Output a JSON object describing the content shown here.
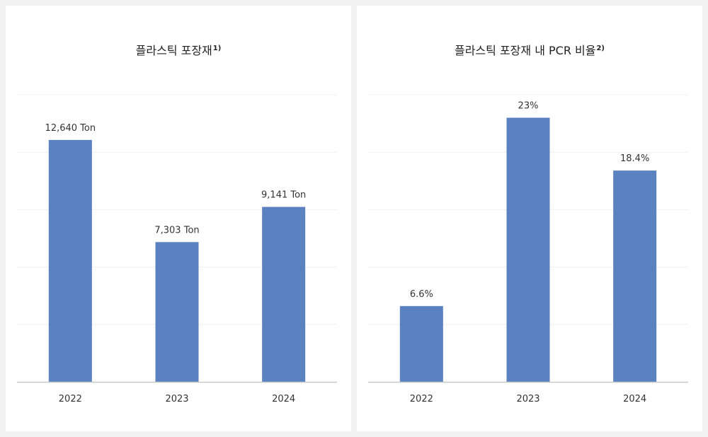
{
  "charts": [
    {
      "title": "플라스틱 포장재",
      "title_note": "1)",
      "value_suffix": " Ton"
    },
    {
      "title": "플라스틱 포장재 내 PCR 비율",
      "title_note": "2)",
      "value_suffix": "%"
    }
  ],
  "colors": {
    "bar": "#5b82c0",
    "gridline": "#f0f0f0",
    "axis": "#c8c8c8",
    "panel": "#ffffff",
    "background": "#f2f2f2"
  },
  "chart_data": [
    {
      "type": "bar",
      "title": "플라스틱 포장재 1)",
      "categories": [
        "2022",
        "2023",
        "2024"
      ],
      "values": [
        12640,
        7303,
        9141
      ],
      "data_labels": [
        "12,640 Ton",
        "7,303 Ton",
        "9,141 Ton"
      ],
      "unit": "Ton",
      "ylim": [
        0,
        15000
      ],
      "grid": true,
      "legend": "none",
      "xlabel": "",
      "ylabel": ""
    },
    {
      "type": "bar",
      "title": "플라스틱 포장재 내 PCR 비율 2)",
      "categories": [
        "2022",
        "2023",
        "2024"
      ],
      "values": [
        6.6,
        23,
        18.4
      ],
      "data_labels": [
        "6.6%",
        "23%",
        "18.4%"
      ],
      "unit": "%",
      "ylim": [
        0,
        25
      ],
      "grid": true,
      "legend": "none",
      "xlabel": "",
      "ylabel": ""
    }
  ]
}
